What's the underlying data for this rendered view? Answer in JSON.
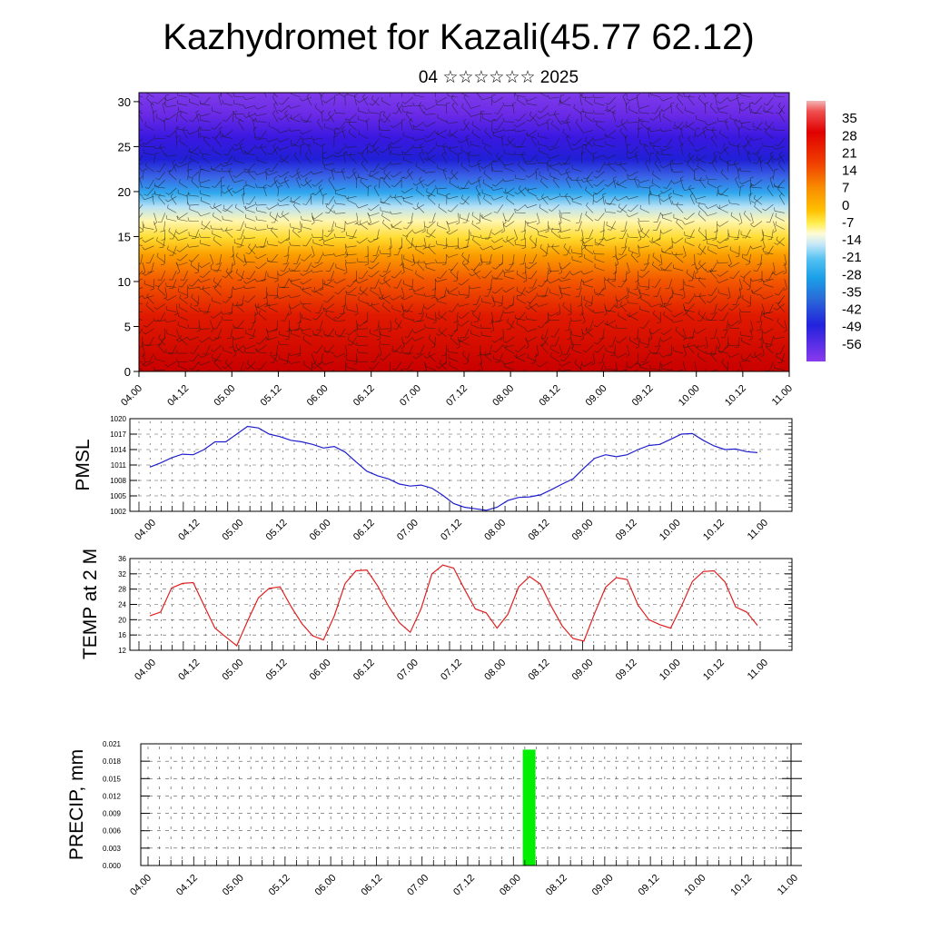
{
  "header": {
    "title": "Kazhydromet for Kazali(45.77 62.12)",
    "subtitle": "04 ☆☆☆☆☆☆ 2025"
  },
  "chart_data": [
    {
      "type": "heatmap",
      "name": "vertical-section",
      "x_ticks": [
        "04.00",
        "04.12",
        "05.00",
        "05.12",
        "06.00",
        "06.12",
        "07.00",
        "07.12",
        "08.00",
        "08.12",
        "09.00",
        "09.12",
        "10.00",
        "10.12",
        "11.00"
      ],
      "y_ticks": [
        "0",
        "5",
        "10",
        "15",
        "20",
        "25",
        "30"
      ],
      "ylim": [
        0,
        31
      ],
      "colorbar_labels": [
        "35",
        "28",
        "21",
        "14",
        "7",
        "0",
        "-7",
        "-14",
        "-21",
        "-28",
        "-35",
        "-42",
        "-49",
        "-56"
      ],
      "colorbar_range": [
        -63,
        42
      ],
      "overlay": "wind barbs"
    },
    {
      "type": "line",
      "name": "pmsl",
      "ylabel": "PMSL",
      "color": "#1e1ecc",
      "y_ticks": [
        "1002",
        "1005",
        "1008",
        "1011",
        "1014",
        "1017",
        "1020"
      ],
      "ylim": [
        1002,
        1020
      ],
      "x_ticks": [
        "04.00",
        "04.12",
        "05.00",
        "05.12",
        "06.00",
        "06.12",
        "07.00",
        "07.12",
        "08.00",
        "08.12",
        "09.00",
        "09.12",
        "10.00",
        "10.12",
        "11.00"
      ],
      "values": [
        1010.6,
        1011.4,
        1012.4,
        1013.1,
        1013.0,
        1014.0,
        1015.5,
        1015.5,
        1017.0,
        1018.5,
        1018.2,
        1017.0,
        1016.5,
        1015.8,
        1015.5,
        1015.0,
        1014.3,
        1014.6,
        1013.5,
        1011.6,
        1009.8,
        1008.9,
        1008.3,
        1007.3,
        1006.9,
        1007.1,
        1006.5,
        1005.1,
        1003.5,
        1002.8,
        1002.5,
        1002.2,
        1002.8,
        1004.1,
        1004.7,
        1004.8,
        1005.2,
        1006.2,
        1007.3,
        1008.3,
        1010.4,
        1012.3,
        1013.0,
        1012.6,
        1013.0,
        1014.0,
        1014.8,
        1015.0,
        1016.0,
        1017.0,
        1017.1,
        1015.8,
        1014.7,
        1014.0,
        1014.1,
        1013.6,
        1013.4
      ]
    },
    {
      "type": "line",
      "name": "temp-2m",
      "ylabel": "TEMP at 2 M",
      "color": "#e02020",
      "y_ticks": [
        "12",
        "16",
        "20",
        "24",
        "28",
        "32",
        "36"
      ],
      "ylim": [
        12,
        36
      ],
      "x_ticks": [
        "04.00",
        "04.12",
        "05.00",
        "05.12",
        "06.00",
        "06.12",
        "07.00",
        "07.12",
        "08.00",
        "08.12",
        "09.00",
        "09.12",
        "10.00",
        "10.12",
        "11.00"
      ],
      "values": [
        21.0,
        22.0,
        28.3,
        29.5,
        29.7,
        23.7,
        17.8,
        15.5,
        13.2,
        19.6,
        25.7,
        28.2,
        28.6,
        23.5,
        19.0,
        15.8,
        14.7,
        21.0,
        29.5,
        32.8,
        33.0,
        28.8,
        23.5,
        19.2,
        16.7,
        22.9,
        32.0,
        34.3,
        33.5,
        28.0,
        22.8,
        21.8,
        17.8,
        21.4,
        28.6,
        31.3,
        29.3,
        23.5,
        18.4,
        15.1,
        14.4,
        21.7,
        28.5,
        31.0,
        30.5,
        23.8,
        20.0,
        18.7,
        17.8,
        23.6,
        30.0,
        32.6,
        32.8,
        29.9,
        23.3,
        22.0,
        18.5
      ]
    },
    {
      "type": "bar",
      "name": "precip",
      "ylabel": "PRECIP, mm",
      "color": "#00ee00",
      "y_ticks": [
        "0.000",
        "0.003",
        "0.006",
        "0.009",
        "0.012",
        "0.015",
        "0.018",
        "0.021"
      ],
      "ylim": [
        0,
        0.021
      ],
      "x_ticks": [
        "04.00",
        "04.12",
        "05.00",
        "05.12",
        "06.00",
        "06.12",
        "07.00",
        "07.12",
        "08.00",
        "08.12",
        "09.00",
        "09.12",
        "10.00",
        "10.12",
        "11.00"
      ],
      "bars": [
        {
          "x": "08.03",
          "value": 0.02
        }
      ]
    }
  ]
}
